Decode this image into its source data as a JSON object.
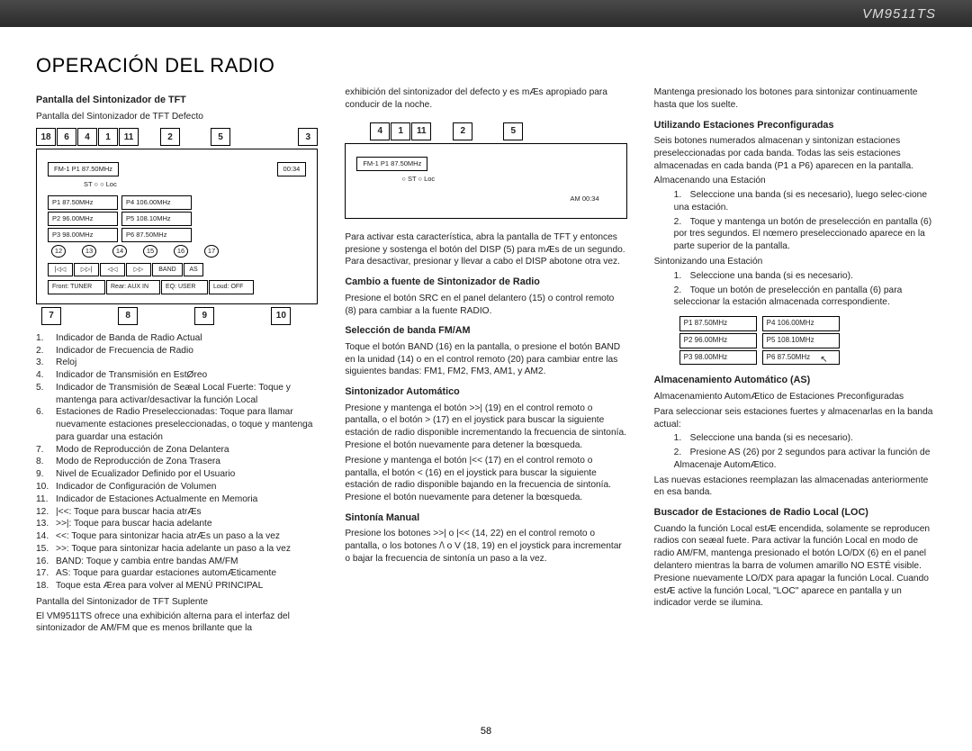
{
  "model": "VM9511TS",
  "page_title": "OPERACIÓN DEL RADIO",
  "page_number": "58",
  "col1": {
    "h1": "Pantalla del Sintonizador de TFT",
    "p1": "Pantalla del Sintonizador de TFT Defecto",
    "callouts_top": [
      "18",
      "6",
      "4",
      "1",
      "11",
      "2",
      "5",
      "3"
    ],
    "tft": {
      "fm": "FM-1   P1   87.50MHz",
      "clock": "00:34",
      "st": "ST ○   ○ Loc",
      "presets": [
        [
          "P1   87.50MHz",
          "P4   106.00MHz"
        ],
        [
          "P2   96.00MHz",
          "P5   108.10MHz"
        ],
        [
          "P3   98.00MHz",
          "P6   87.50MHz"
        ]
      ],
      "circles": [
        "12",
        "13",
        "14",
        "15",
        "16",
        "17"
      ],
      "btns": [
        "|◁◁",
        "▷▷|",
        "◁◁",
        "▷▷",
        "BAND",
        "AS"
      ],
      "info": [
        "Front: TUNER",
        "Rear: AUX IN",
        "EQ: USER",
        "Loud: OFF"
      ]
    },
    "callouts_bottom": [
      "7",
      "8",
      "9",
      "10"
    ],
    "list": [
      [
        "1.",
        "Indicador de Banda de Radio Actual"
      ],
      [
        "2.",
        "Indicador de Frecuencia de Radio"
      ],
      [
        "3.",
        "Reloj"
      ],
      [
        "4.",
        "Indicador de Transmisión en EstØreo"
      ],
      [
        "5.",
        "Indicador de Transmisión de Seæal Local Fuerte: Toque y mantenga para activar/desactivar la función Local"
      ],
      [
        "6.",
        "Estaciones de Radio Preseleccionadas: Toque para llamar nuevamente estaciones preseleccionadas, o toque y mantenga para guardar una estación"
      ],
      [
        "7.",
        "Modo de Reproducción de Zona Delantera"
      ],
      [
        "8.",
        "Modo de Reproducción de Zona Trasera"
      ],
      [
        "9.",
        "Nivel de Ecualizador Definido por el Usuario"
      ],
      [
        "10.",
        "Indicador de Configuración de Volumen"
      ],
      [
        "11.",
        "Indicador de Estaciones Actualmente en Memoria"
      ],
      [
        "12.",
        "|<<: Toque para buscar hacia atrÆs"
      ],
      [
        "13.",
        ">>|: Toque para buscar hacia adelante"
      ],
      [
        "14.",
        "<<: Toque para sintonizar hacia atrÆs un paso a la vez"
      ],
      [
        "15.",
        ">>: Toque para sintonizar hacia adelante un paso a la vez"
      ],
      [
        "16.",
        "BAND: Toque y cambia entre bandas AM/FM"
      ],
      [
        "17.",
        "AS: Toque para guardar estaciones automÆticamente"
      ],
      [
        "18.",
        "Toque esta Ærea para volver al MENÚ PRINCIPAL"
      ]
    ],
    "p2": "Pantalla del Sintonizador de TFT Suplente",
    "p3": "El VM9511TS ofrece una exhibición alterna para el interfaz del sintonizador de AM/FM que es menos brillante que la"
  },
  "col2": {
    "p0": "exhibición del sintonizador del defecto y es mÆs apropiado para conducir de la noche.",
    "callouts_top": [
      "4",
      "1",
      "11",
      "2",
      "5"
    ],
    "tft_small": {
      "fm": "FM-1   P1   87.50MHz",
      "st": "○ ST  ○ Loc",
      "am": "AM 00:34"
    },
    "p1": "Para activar esta característica, abra la pantalla de TFT y entonces presione y sostenga el botón del DISP (5) para mÆs de un segundo. Para desactivar, presionar y llevar a cabo el DISP abotone otra vez.",
    "h2": "Cambio a fuente de Sintonizador de Radio",
    "p2": "Presione el botón SRC en el panel delantero (15) o control remoto (8) para cambiar a la fuente RADIO.",
    "h3": "Selección de banda FM/AM",
    "p3": "Toque el botón BAND (16) en la pantalla, o presione el botón BAND en la unidad (14) o en el control remoto (20) para cambiar entre las siguientes bandas: FM1, FM2, FM3, AM1, y AM2.",
    "h4": "Sintonizador Automático",
    "p4a": "Presione y mantenga el botón >>| (19) en el control remoto o pantalla, o el botón > (17) en el joystick para buscar la siguiente estación de radio disponible incrementando la frecuencia de sintonía. Presione el botón nuevamente para detener la bœsqueda.",
    "p4b": "Presione y mantenga el botón |<< (17) en el control remoto o pantalla, el botón < (16) en el joystick para buscar la siguiente estación de radio disponible bajando en la frecuencia de sintonía. Presione el botón nuevamente para detener la bœsqueda.",
    "h5": "Sintonía Manual",
    "p5": "Presione los botones >>| o |<< (14, 22) en el control remoto o pantalla, o los botones /\\ o V (18, 19) en el joystick para incrementar o bajar la frecuencia de sintonía un paso a la vez."
  },
  "col3": {
    "p0": "Mantenga presionado los botones para sintonizar continuamente hasta que los suelte.",
    "h1": "Utilizando Estaciones Preconfiguradas",
    "p1": "Seis botones numerados almacenan y sintonizan estaciones preseleccionadas por cada banda. Todas las seis estaciones almacenadas en cada banda (P1 a P6) aparecen en la pantalla.",
    "sub1": "Almacenando una Estación",
    "li1a_n": "1.",
    "li1a": "Seleccione una banda (si es necesario), luego selec-cione una estación.",
    "li1b_n": "2.",
    "li1b": "Toque y mantenga un botón de preselección en pantalla (6) por tres segundos. El nœmero preseleccionado aparece en la parte superior de la pantalla.",
    "sub2": "Sintonizando una Estación",
    "li2a_n": "1.",
    "li2a": "Seleccione una banda (si es necesario).",
    "li2b_n": "2.",
    "li2b": "Toque un botón de preselección en pantalla (6) para seleccionar la estación almacenada correspondiente.",
    "presets": [
      [
        "P1   87.50MHz",
        "P4   106.00MHz"
      ],
      [
        "P2   96.00MHz",
        "P5   108.10MHz"
      ],
      [
        "P3   98.00MHz",
        "P6   87.50MHz"
      ]
    ],
    "h2": "Almacenamiento Automático (AS)",
    "p2a": "Almacenamiento AutomÆtico de Estaciones Preconfiguradas",
    "p2b": "Para seleccionar seis estaciones fuertes y almacenarlas en la banda actual:",
    "li3a_n": "1.",
    "li3a": "Seleccione una banda (si es necesario).",
    "li3b_n": "2.",
    "li3b": "Presione AS (26) por 2 segundos para activar la función de Almacenaje AutomÆtico.",
    "p2c": "Las nuevas estaciones reemplazan las almacenadas anteriormente en esa banda.",
    "h3": "Buscador de Estaciones de Radio Local (LOC)",
    "p3": "Cuando la función Local estÆ encendida, solamente se reproducen radios con seæal fuete. Para activar la función Local en modo de radio AM/FM, mantenga presionado el botón LO/DX (6) en el panel delantero mientras la barra de volumen amarillo NO ESTÉ visible. Presione nuevamente LO/DX para apagar la función Local. Cuando estÆ active la función Local, \"LOC\" aparece en pantalla y un indicador verde se ilumina."
  }
}
